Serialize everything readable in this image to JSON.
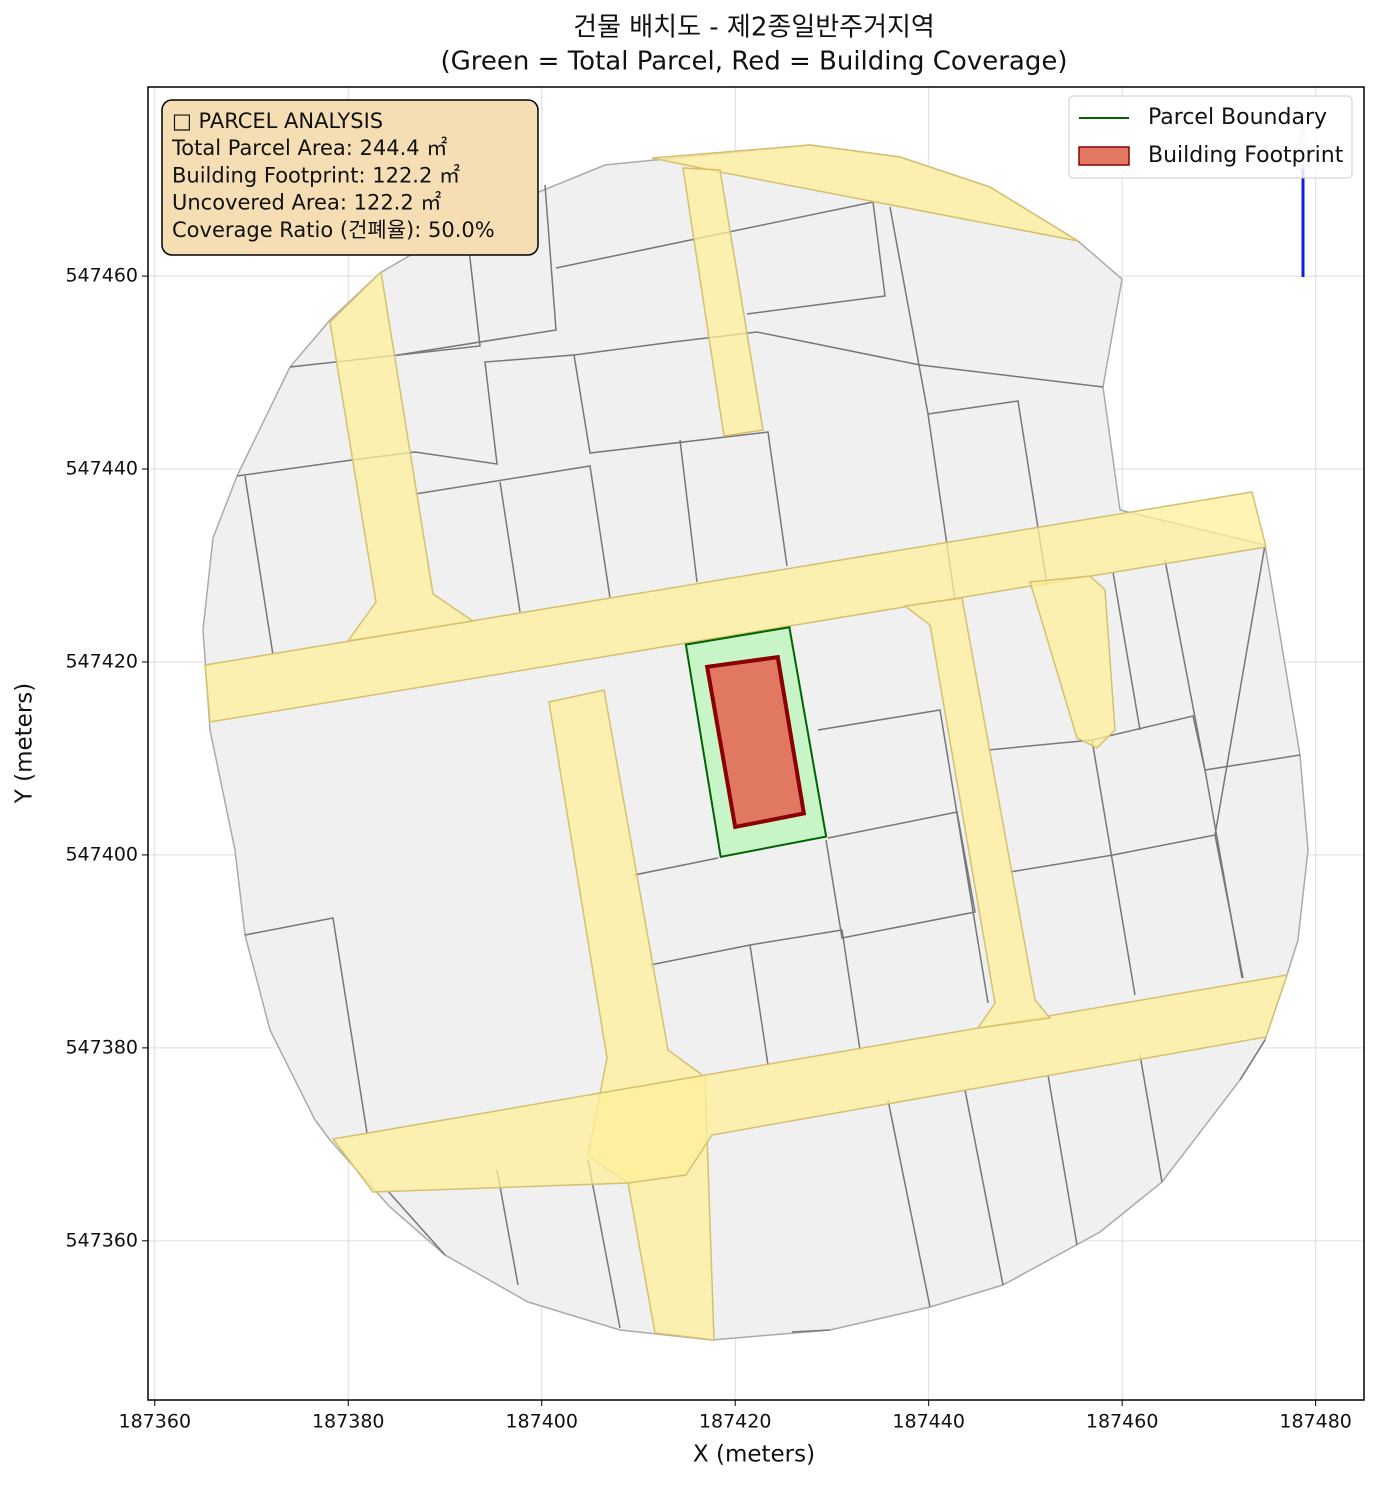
{
  "chart_data": {
    "type": "map",
    "title": [
      "건물 배치도 - 제2종일반주거지역",
      "(Green = Total Parcel, Red = Building Coverage)"
    ],
    "x_label": "X (meters)",
    "y_label": "Y (meters)",
    "xlim": [
      187359.3,
      187485
    ],
    "ylim": [
      547343.5,
      547479.6
    ],
    "xticks": [
      187360,
      187380,
      187400,
      187420,
      187440,
      187460,
      187480
    ],
    "yticks": [
      547360,
      547380,
      547400,
      547420,
      547440,
      547460
    ],
    "grid": true,
    "legend": "upper right",
    "series": [
      {
        "name": "Parcel Boundary",
        "color": "#006400",
        "fill": "#c8f5c8",
        "x": [
          187414.9,
          187425.6,
          187429.4,
          187418.5
        ],
        "y": [
          547421.8,
          547423.6,
          547401.9,
          547399.8
        ]
      },
      {
        "name": "Building Footprint",
        "color": "#8b0000",
        "fill": "#e07862",
        "x": [
          187417.1,
          187424.4,
          187427.1,
          187420.0
        ],
        "y": [
          547419.5,
          547420.5,
          547404.3,
          547402.9
        ]
      }
    ],
    "info_box": [
      "□ PARCEL ANALYSIS",
      "Total Parcel Area: 244.4 ㎡",
      "Building Footprint: 122.2 ㎡",
      "Uncovered Area: 122.2 ㎡",
      "Coverage Ratio (건폐율): 50.0%"
    ]
  }
}
